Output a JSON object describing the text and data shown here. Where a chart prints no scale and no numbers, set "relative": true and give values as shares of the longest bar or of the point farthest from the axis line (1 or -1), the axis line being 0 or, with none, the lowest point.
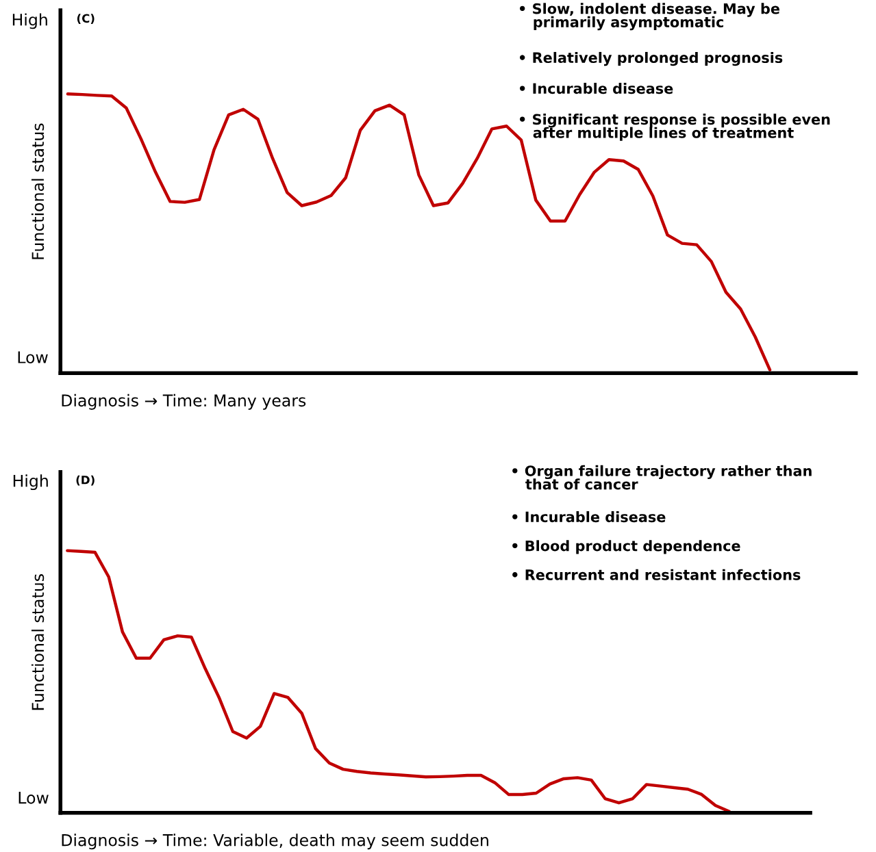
{
  "chart_data": [
    {
      "type": "line",
      "title": "(C)",
      "ylabel": "Functional status",
      "xlabel": "Diagnosis → Time: Many years",
      "relative": true,
      "grid": false,
      "marker": "none",
      "line_style": "solid",
      "tick_labels": false,
      "categories": [
        null,
        null,
        null,
        null,
        null,
        null,
        null,
        null,
        null,
        null,
        null,
        null,
        null,
        null,
        null,
        null,
        null,
        null,
        null,
        null,
        null,
        null,
        null,
        null,
        null,
        null,
        null,
        null,
        null,
        null,
        null,
        null,
        null,
        null,
        null,
        null,
        null,
        null,
        null,
        null,
        null,
        null,
        null,
        null,
        null,
        null,
        null,
        null,
        null
      ],
      "series": [
        {
          "color": "#c00000",
          "values": [
            1.0,
            0.998,
            0.995,
            0.993,
            0.95,
            0.84,
            0.72,
            0.615,
            0.612,
            0.622,
            0.8,
            0.925,
            0.945,
            0.91,
            0.77,
            0.647,
            0.6,
            0.613,
            0.636,
            0.7,
            0.87,
            0.94,
            0.96,
            0.925,
            0.71,
            0.6,
            0.61,
            0.68,
            0.77,
            0.875,
            0.885,
            0.835,
            0.62,
            0.545,
            0.545,
            0.64,
            0.72,
            0.765,
            0.76,
            0.73,
            0.635,
            0.495,
            0.465,
            0.46,
            0.4,
            0.29,
            0.23,
            0.13,
            0.012
          ]
        }
      ],
      "annotations": [
        "High",
        "Low",
        "• Slow, indolent disease. May be\n   primarily asymptomatic",
        "• Relatively prolonged prognosis",
        "• Incurable disease",
        "• Significant response is possible even\n   after multiple lines of treatment"
      ]
    },
    {
      "type": "line",
      "title": "(D)",
      "ylabel": "Functional status",
      "xlabel": "Diagnosis → Time: Variable, death may seem sudden",
      "relative": true,
      "grid": false,
      "marker": "none",
      "line_style": "solid",
      "tick_labels": false,
      "categories": [
        null,
        null,
        null,
        null,
        null,
        null,
        null,
        null,
        null,
        null,
        null,
        null,
        null,
        null,
        null,
        null,
        null,
        null,
        null,
        null,
        null,
        null,
        null,
        null,
        null,
        null,
        null,
        null,
        null,
        null,
        null,
        null,
        null,
        null,
        null,
        null,
        null,
        null,
        null,
        null,
        null,
        null,
        null,
        null,
        null,
        null,
        null,
        null,
        null
      ],
      "series": [
        {
          "color": "#c00000",
          "values": [
            1.0,
            0.997,
            0.994,
            0.9,
            0.69,
            0.59,
            0.59,
            0.66,
            0.675,
            0.67,
            0.55,
            0.44,
            0.31,
            0.285,
            0.33,
            0.455,
            0.44,
            0.38,
            0.245,
            0.19,
            0.166,
            0.158,
            0.152,
            0.148,
            0.145,
            0.141,
            0.137,
            0.138,
            0.14,
            0.143,
            0.143,
            0.115,
            0.07,
            0.07,
            0.075,
            0.11,
            0.13,
            0.134,
            0.125,
            0.054,
            0.038,
            0.054,
            0.108,
            0.102,
            0.096,
            0.09,
            0.07,
            0.028,
            0.005
          ]
        }
      ],
      "annotations": [
        "High",
        "Low",
        "• Organ failure trajectory rather than\n   that of cancer",
        "• Incurable disease",
        "• Blood product dependence",
        "• Recurrent and resistant infections"
      ]
    }
  ]
}
